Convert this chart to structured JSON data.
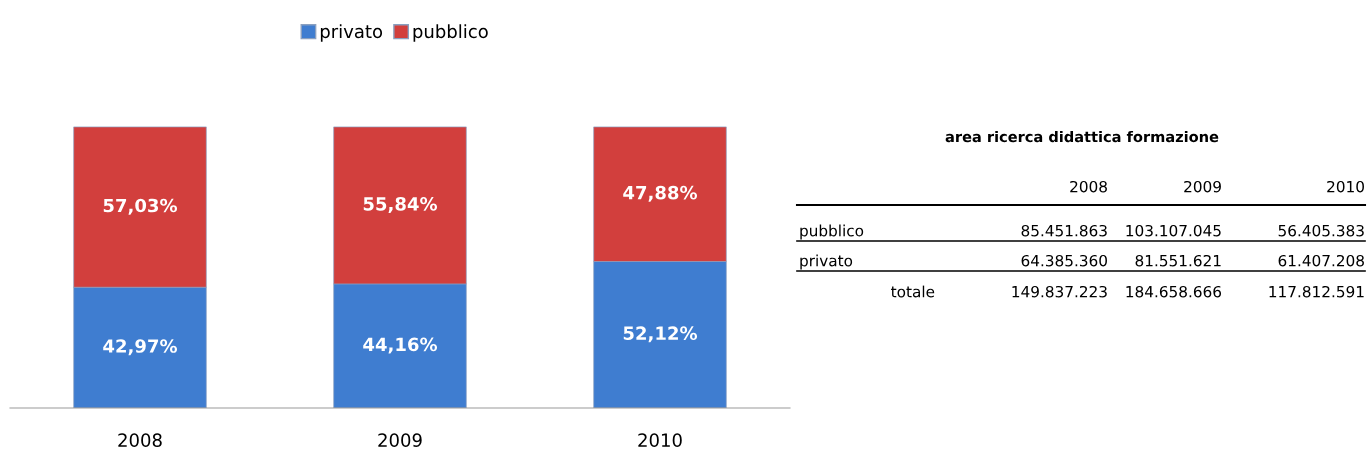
{
  "chart_data": [
    {
      "type": "bar",
      "stacked": true,
      "categories": [
        "2008",
        "2009",
        "2010"
      ],
      "legend": "top",
      "tick_labels": "x",
      "series": [
        {
          "name": "privato",
          "color": "#3f7dd0",
          "values": [
            42.97,
            44.16,
            52.12
          ],
          "value_labels": [
            "42,97%",
            "44,16%",
            "52,12%"
          ]
        },
        {
          "name": "pubblico",
          "color": "#d23f3d",
          "values": [
            57.03,
            55.84,
            47.88
          ],
          "value_labels": [
            "57,03%",
            "55,84%",
            "47,88%"
          ]
        }
      ]
    },
    {
      "type": "other",
      "title": "area ricerca didattica formazione",
      "categories": [
        "2008",
        "2009",
        "2010"
      ],
      "series": [
        {
          "name": "pubblico",
          "values": [
            85451863,
            103107045,
            56405383
          ],
          "value_labels": [
            "85.451.863",
            "103.107.045",
            "56.405.383"
          ]
        },
        {
          "name": "privato",
          "values": [
            64385360,
            81551621,
            61407208
          ],
          "value_labels": [
            "64.385.360",
            "81.551.621",
            "61.407.208"
          ]
        }
      ],
      "annotations": [
        "totale"
      ],
      "totals": [
        "149.837.223",
        "184.658.666",
        "117.812.591"
      ]
    }
  ]
}
